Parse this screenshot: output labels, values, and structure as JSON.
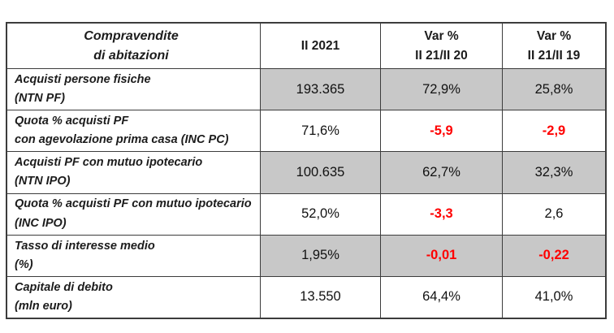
{
  "table": {
    "title": {
      "line1": "Compravendite",
      "line2": "di abitazioni"
    },
    "columns": [
      {
        "line1": "II 2021",
        "line2": ""
      },
      {
        "line1": "Var %",
        "line2": "II 21/II 20"
      },
      {
        "line1": "Var %",
        "line2": "II 21/II 19"
      }
    ],
    "rows": [
      {
        "label_line1": "Acquisti persone fisiche",
        "label_line2": "(NTN PF)",
        "shaded": true,
        "values": [
          {
            "text": "193.365",
            "negative": false
          },
          {
            "text": "72,9%",
            "negative": false
          },
          {
            "text": "25,8%",
            "negative": false
          }
        ]
      },
      {
        "label_line1": "Quota % acquisti PF",
        "label_line2": "con agevolazione prima casa (INC PC)",
        "shaded": false,
        "values": [
          {
            "text": "71,6%",
            "negative": false
          },
          {
            "text": "-5,9",
            "negative": true
          },
          {
            "text": "-2,9",
            "negative": true
          }
        ]
      },
      {
        "label_line1": "Acquisti PF con mutuo ipotecario",
        "label_line2": "(NTN IPO)",
        "shaded": true,
        "values": [
          {
            "text": "100.635",
            "negative": false
          },
          {
            "text": "62,7%",
            "negative": false
          },
          {
            "text": "32,3%",
            "negative": false
          }
        ]
      },
      {
        "label_line1": "Quota % acquisti PF con mutuo ipotecario",
        "label_line2": "(INC IPO)",
        "shaded": false,
        "values": [
          {
            "text": "52,0%",
            "negative": false
          },
          {
            "text": "-3,3",
            "negative": true
          },
          {
            "text": "2,6",
            "negative": false
          }
        ]
      },
      {
        "label_line1": "Tasso di interesse medio",
        "label_line2": "(%)",
        "shaded": true,
        "values": [
          {
            "text": "1,95%",
            "negative": false
          },
          {
            "text": "-0,01",
            "negative": true
          },
          {
            "text": "-0,22",
            "negative": true
          }
        ]
      },
      {
        "label_line1": "Capitale di debito",
        "label_line2": "(mln euro)",
        "shaded": false,
        "values": [
          {
            "text": "13.550",
            "negative": false
          },
          {
            "text": "64,4%",
            "negative": false
          },
          {
            "text": "41,0%",
            "negative": false
          }
        ]
      }
    ]
  },
  "colors": {
    "shaded_bg": "#c8c8c8",
    "negative_text": "#ff0000",
    "border": "#3c3c3c"
  }
}
